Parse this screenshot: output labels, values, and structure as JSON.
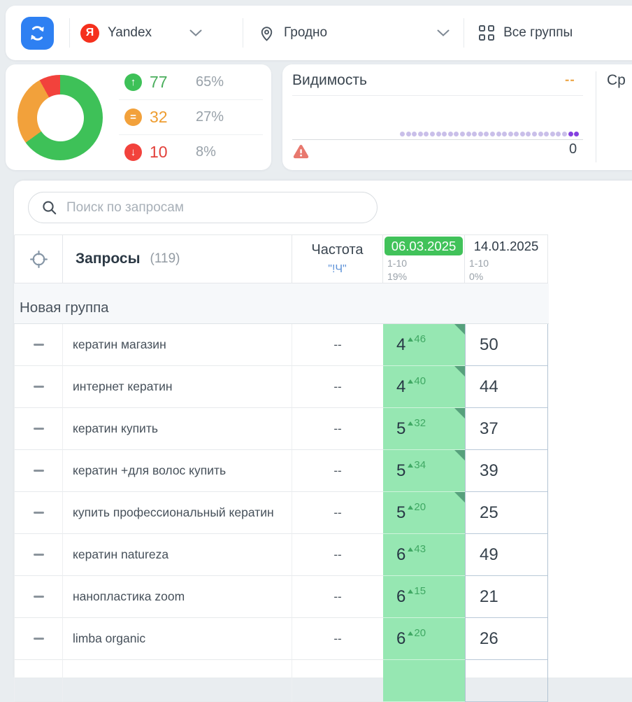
{
  "topbar": {
    "search_engine": {
      "logo_letter": "Я",
      "label": "Yandex"
    },
    "region": {
      "label": "Гродно"
    },
    "groups": {
      "label": "Все группы"
    }
  },
  "summary": {
    "donut": {
      "values": [
        65,
        27,
        8
      ],
      "colors": [
        "#3ec158",
        "#f2a13b",
        "#f2423c"
      ]
    },
    "rows": [
      {
        "icon": "arrow-up-icon",
        "count": "77",
        "percent": "65%",
        "color": "#3ec158",
        "text_color": "#4aae5c"
      },
      {
        "icon": "equals-icon",
        "count": "32",
        "percent": "27%",
        "color": "#f2a13b",
        "text_color": "#ee9d31"
      },
      {
        "icon": "arrow-down-icon",
        "count": "10",
        "percent": "8%",
        "color": "#f2423c",
        "text_color": "#e2403a"
      }
    ]
  },
  "visibility": {
    "title": "Видимость",
    "trend_placeholder": "--",
    "min_label": "0",
    "sparkline": {
      "dots": 30,
      "highlighted_tail": 2,
      "dot_color": "#c9bfe9",
      "highlight_color": "#8440e0"
    },
    "adjacent_card_label": "Ср"
  },
  "search": {
    "placeholder": "Поиск по запросам"
  },
  "table": {
    "header": {
      "title": "Запросы",
      "count": "(119)",
      "frequency_label": "Частота",
      "frequency_sub": "\"!Ч\"",
      "dates": [
        {
          "date": "06.03.2025",
          "range": "1-10",
          "percent": "19%",
          "highlight": true
        },
        {
          "date": "14.01.2025",
          "range": "1-10",
          "percent": "0%",
          "highlight": false
        }
      ]
    },
    "group_label": "Новая группа",
    "rows": [
      {
        "keyword": "кератин магазин",
        "frequency": "--",
        "position": "4",
        "delta": "46",
        "value": "50",
        "corner": true
      },
      {
        "keyword": "интернет кератин",
        "frequency": "--",
        "position": "4",
        "delta": "40",
        "value": "44",
        "corner": true
      },
      {
        "keyword": "кератин купить",
        "frequency": "--",
        "position": "5",
        "delta": "32",
        "value": "37",
        "corner": true
      },
      {
        "keyword": "кератин +для волос купить",
        "frequency": "--",
        "position": "5",
        "delta": "34",
        "value": "39",
        "corner": true
      },
      {
        "keyword": "купить профессиональный кератин",
        "frequency": "--",
        "position": "5",
        "delta": "20",
        "value": "25",
        "corner": true
      },
      {
        "keyword": "кератин natureza",
        "frequency": "--",
        "position": "6",
        "delta": "43",
        "value": "49",
        "corner": false
      },
      {
        "keyword": "нанопластика zoom",
        "frequency": "--",
        "position": "6",
        "delta": "15",
        "value": "21",
        "corner": false
      },
      {
        "keyword": "limba organic",
        "frequency": "--",
        "position": "6",
        "delta": "20",
        "value": "26",
        "corner": false
      },
      {
        "keyword": "",
        "frequency": "",
        "position": "",
        "delta": "",
        "value": "",
        "corner": false
      }
    ]
  }
}
